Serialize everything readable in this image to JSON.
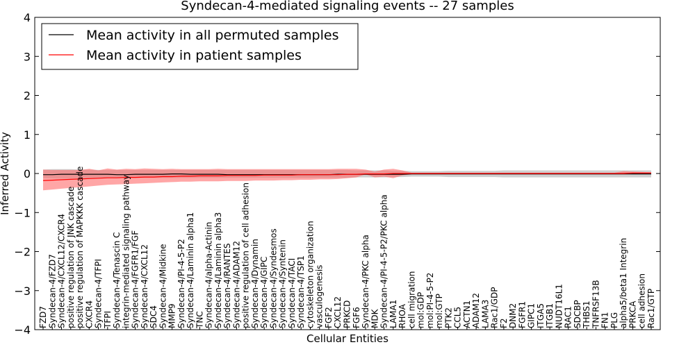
{
  "chart_data": {
    "type": "line",
    "title": "Syndecan-4-mediated signaling events -- 27 samples",
    "xlabel": "Cellular Entities",
    "ylabel": "Inferred Activity",
    "ylim": [
      -4,
      4
    ],
    "yticks": [
      -4,
      -3,
      -2,
      -1,
      0,
      1,
      2,
      3,
      4
    ],
    "legend_position": "top-left",
    "colors": {
      "permuted": "#000000",
      "patient": "#ff0000",
      "permuted_band": "#bfbfbf",
      "patient_band": "#ff6b6b"
    },
    "categories": [
      "FZD7",
      "Syndecan-4/FZD7",
      "Syndecan-4/CXCL12/CXCR4",
      "positive regulation of JNK cascade",
      "positive regulation of MAPKKK cascade",
      "CXCR4",
      "Syndecan-4/TFPI",
      "TFPI",
      "Syndecan-4/Tenascin C",
      "integrin-mediated signaling pathway",
      "Syndecan-4/FGFR1/FGF",
      "Syndecan-4/CXCL12",
      "SDC4",
      "Syndecan-4/Midkine",
      "MMP9",
      "Syndecan-4/PI-4-5-P2",
      "Syndecan-4/Laminin alpha1",
      "TNC",
      "Syndecan-4/alpha-Actinin",
      "Syndecan-4/Laminin alpha3",
      "Syndecan-4/RANTES",
      "Syndecan-4/ADAM12",
      "positive regulation of cell adhesion",
      "Syndecan-4/Dynamin",
      "Syndecan-4/GIPC",
      "Syndecan-4/Syndesmos",
      "Syndecan-4/Syntenin",
      "Syndecan-4/TACI",
      "Syndecan-4/TSP1",
      "cytoskeleton organization",
      "vasculogenesis",
      "FGF2",
      "CXCL12",
      "PRKCD",
      "FGF6",
      "Syndecan-4/PKC alpha",
      "MDK",
      "Syndecan-4/PI-4-5-P2/PKC alpha",
      "LAMA1",
      "RHOA",
      "cell migration",
      "mol:GDP",
      "mol:PI-4-5-P2",
      "mol:GTP",
      "PTK2",
      "CCL5",
      "ACTN1",
      "ADAM12",
      "LAMA3",
      "Rac1/GDP",
      "F2",
      "DNM2",
      "FGFR1",
      "GIPC1",
      "ITGA5",
      "ITGB1",
      "NUDT16L1",
      "RAC1",
      "SDCBP",
      "THBS1",
      "TNFRSF13B",
      "FN1",
      "PLG",
      "alpha5/beta1 Integrin",
      "PRKCA",
      "cell adhesion",
      "Rac1/GTP"
    ],
    "series": [
      {
        "name": "Mean activity in all permuted samples",
        "values": [
          -0.03,
          -0.03,
          -0.02,
          -0.02,
          -0.02,
          -0.02,
          -0.02,
          -0.02,
          -0.03,
          -0.03,
          -0.02,
          -0.02,
          -0.02,
          -0.02,
          -0.01,
          -0.01,
          -0.02,
          -0.02,
          -0.02,
          -0.02,
          -0.03,
          -0.03,
          -0.03,
          -0.03,
          -0.03,
          -0.03,
          -0.03,
          -0.03,
          -0.03,
          -0.03,
          -0.03,
          -0.03,
          -0.02,
          -0.02,
          -0.02,
          -0.02,
          -0.02,
          -0.02,
          -0.02,
          -0.02,
          -0.01,
          -0.01,
          -0.01,
          -0.01,
          -0.01,
          -0.01,
          -0.01,
          -0.01,
          -0.01,
          -0.01,
          -0.01,
          -0.01,
          -0.01,
          -0.01,
          -0.01,
          -0.01,
          -0.01,
          -0.01,
          -0.01,
          -0.01,
          -0.01,
          -0.01,
          -0.01,
          -0.01,
          -0.01,
          -0.01,
          -0.01
        ],
        "lower": [
          -0.12,
          -0.13,
          -0.13,
          -0.13,
          -0.12,
          -0.12,
          -0.11,
          -0.11,
          -0.11,
          -0.11,
          -0.11,
          -0.11,
          -0.11,
          -0.11,
          -0.11,
          -0.11,
          -0.11,
          -0.11,
          -0.11,
          -0.11,
          -0.11,
          -0.11,
          -0.11,
          -0.11,
          -0.11,
          -0.11,
          -0.11,
          -0.11,
          -0.11,
          -0.11,
          -0.11,
          -0.11,
          -0.11,
          -0.11,
          -0.1,
          -0.1,
          -0.1,
          -0.1,
          -0.09,
          -0.09,
          -0.08,
          -0.08,
          -0.08,
          -0.08,
          -0.09,
          -0.09,
          -0.09,
          -0.09,
          -0.09,
          -0.09,
          -0.1,
          -0.1,
          -0.1,
          -0.1,
          -0.1,
          -0.1,
          -0.1,
          -0.1,
          -0.1,
          -0.1,
          -0.1,
          -0.1,
          -0.1,
          -0.1,
          -0.1,
          -0.1,
          -0.1
        ],
        "upper": [
          0.1,
          0.11,
          0.11,
          0.11,
          0.1,
          0.1,
          0.09,
          0.09,
          0.09,
          0.09,
          0.09,
          0.09,
          0.09,
          0.09,
          0.09,
          0.09,
          0.09,
          0.09,
          0.09,
          0.09,
          0.09,
          0.09,
          0.09,
          0.09,
          0.09,
          0.09,
          0.09,
          0.09,
          0.09,
          0.09,
          0.09,
          0.09,
          0.09,
          0.09,
          0.08,
          0.08,
          0.08,
          0.08,
          0.07,
          0.07,
          0.06,
          0.06,
          0.06,
          0.06,
          0.07,
          0.07,
          0.07,
          0.07,
          0.07,
          0.07,
          0.08,
          0.08,
          0.08,
          0.08,
          0.08,
          0.08,
          0.08,
          0.08,
          0.08,
          0.08,
          0.08,
          0.08,
          0.08,
          0.08,
          0.08,
          0.08,
          0.08
        ]
      },
      {
        "name": "Mean activity in patient samples",
        "values": [
          -0.18,
          -0.17,
          -0.16,
          -0.15,
          -0.14,
          -0.13,
          -0.12,
          -0.11,
          -0.11,
          -0.1,
          -0.1,
          -0.09,
          -0.09,
          -0.08,
          -0.08,
          -0.07,
          -0.07,
          -0.06,
          -0.06,
          -0.06,
          -0.05,
          -0.05,
          -0.05,
          -0.05,
          -0.04,
          -0.04,
          -0.04,
          -0.04,
          -0.03,
          -0.03,
          -0.03,
          -0.03,
          -0.03,
          -0.02,
          -0.02,
          -0.01,
          -0.01,
          -0.01,
          0.0,
          0.0,
          0.0,
          0.0,
          0.0,
          0.0,
          0.0,
          0.0,
          0.0,
          0.0,
          0.0,
          0.0,
          0.0,
          0.0,
          0.0,
          0.0,
          0.0,
          0.0,
          0.0,
          0.0,
          0.0,
          0.0,
          0.0,
          0.0,
          0.0,
          0.0,
          0.01,
          0.01,
          0.01
        ],
        "lower": [
          -0.43,
          -0.41,
          -0.39,
          -0.37,
          -0.35,
          -0.33,
          -0.31,
          -0.29,
          -0.28,
          -0.27,
          -0.26,
          -0.25,
          -0.24,
          -0.23,
          -0.22,
          -0.21,
          -0.21,
          -0.2,
          -0.2,
          -0.2,
          -0.19,
          -0.19,
          -0.19,
          -0.18,
          -0.18,
          -0.18,
          -0.17,
          -0.17,
          -0.16,
          -0.16,
          -0.15,
          -0.15,
          -0.14,
          -0.12,
          -0.1,
          -0.02,
          -0.1,
          -0.08,
          -0.12,
          -0.05,
          -0.02,
          -0.02,
          -0.02,
          -0.02,
          -0.02,
          -0.02,
          -0.02,
          -0.02,
          -0.02,
          -0.02,
          -0.02,
          -0.02,
          -0.02,
          -0.02,
          -0.02,
          -0.02,
          -0.02,
          -0.02,
          -0.02,
          -0.02,
          -0.02,
          -0.02,
          -0.02,
          -0.02,
          -0.01,
          -0.01,
          -0.01
        ],
        "upper": [
          0.1,
          0.09,
          0.09,
          0.09,
          0.09,
          0.12,
          0.08,
          0.13,
          0.1,
          0.12,
          0.11,
          0.13,
          0.12,
          0.11,
          0.12,
          0.11,
          0.11,
          0.11,
          0.11,
          0.12,
          0.11,
          0.11,
          0.11,
          0.11,
          0.11,
          0.11,
          0.11,
          0.11,
          0.11,
          0.11,
          0.11,
          0.11,
          0.12,
          0.12,
          0.12,
          0.1,
          0.05,
          0.1,
          0.12,
          0.08,
          0.02,
          0.02,
          0.02,
          0.02,
          0.02,
          0.02,
          0.02,
          0.02,
          0.02,
          0.02,
          0.02,
          0.02,
          0.02,
          0.02,
          0.02,
          0.02,
          0.02,
          0.02,
          0.02,
          0.02,
          0.02,
          0.02,
          0.02,
          0.06,
          0.05,
          0.04,
          0.03
        ]
      }
    ]
  }
}
